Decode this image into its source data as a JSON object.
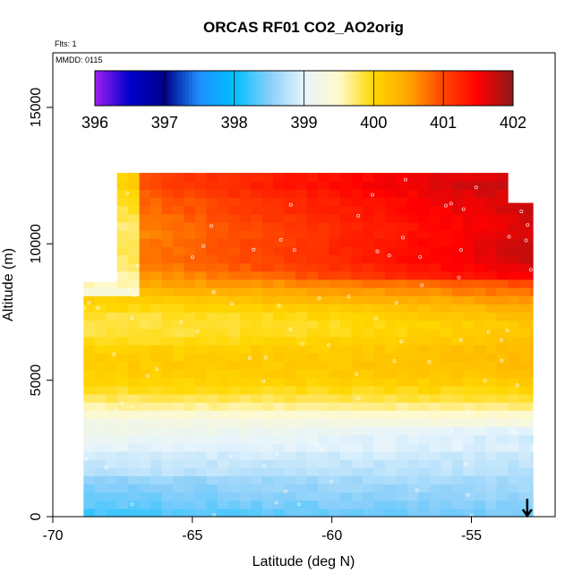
{
  "chart_data": {
    "type": "heatmap",
    "title": "ORCAS RF01 CO2_AO2orig",
    "annotations": {
      "flights": "Flts: 1",
      "date": "MMDD: 0115"
    },
    "xlabel": "Latitude (deg N)",
    "ylabel": "Altitude (m)",
    "xlim": [
      -70,
      -52
    ],
    "ylim": [
      0,
      17000
    ],
    "x_ticks": [
      -70,
      -65,
      -60,
      -55
    ],
    "x_tick_labels": [
      "-70",
      "-65",
      "-60",
      "-55"
    ],
    "y_ticks": [
      0,
      5000,
      10000,
      15000
    ],
    "y_tick_labels": [
      "0",
      "5000",
      "10000",
      "15000"
    ],
    "colorbar": {
      "min": 396,
      "max": 402,
      "ticks": [
        396,
        397,
        398,
        399,
        400,
        401,
        402
      ],
      "tick_labels": [
        "396",
        "397",
        "398",
        "399",
        "400",
        "401",
        "402"
      ],
      "stops": [
        {
          "v": 396.0,
          "c": "#a020f0"
        },
        {
          "v": 396.5,
          "c": "#0000cd"
        },
        {
          "v": 397.0,
          "c": "#00008b"
        },
        {
          "v": 397.5,
          "c": "#1e90ff"
        },
        {
          "v": 398.0,
          "c": "#00bfff"
        },
        {
          "v": 398.5,
          "c": "#87cefa"
        },
        {
          "v": 399.0,
          "c": "#e6f4fc"
        },
        {
          "v": 399.5,
          "c": "#fffacd"
        },
        {
          "v": 400.0,
          "c": "#ffd700"
        },
        {
          "v": 400.5,
          "c": "#ffa500"
        },
        {
          "v": 401.0,
          "c": "#ff4500"
        },
        {
          "v": 401.5,
          "c": "#ff0000"
        },
        {
          "v": 402.0,
          "c": "#8b1a1a"
        }
      ]
    },
    "data_extent": {
      "lat_range": [
        -68.9,
        -52.8
      ],
      "alt_range": [
        0,
        12600
      ]
    },
    "altitude_profile": [
      {
        "alt": 0,
        "co2": 398.4
      },
      {
        "alt": 1000,
        "co2": 398.5
      },
      {
        "alt": 2000,
        "co2": 398.8
      },
      {
        "alt": 3000,
        "co2": 399.3
      },
      {
        "alt": 4000,
        "co2": 399.7
      },
      {
        "alt": 5000,
        "co2": 399.9
      },
      {
        "alt": 6000,
        "co2": 400.2
      },
      {
        "alt": 7000,
        "co2": 400.3
      },
      {
        "alt": 8000,
        "co2": 400.5
      },
      {
        "alt": 9000,
        "co2": 400.7
      },
      {
        "alt": 10000,
        "co2": 400.9
      },
      {
        "alt": 11000,
        "co2": 401.2
      },
      {
        "alt": 12000,
        "co2": 401.1
      },
      {
        "alt": 12600,
        "co2": 400.8
      }
    ],
    "marker": {
      "type": "arrow-down",
      "lat": -53.0,
      "alt": 0
    }
  }
}
